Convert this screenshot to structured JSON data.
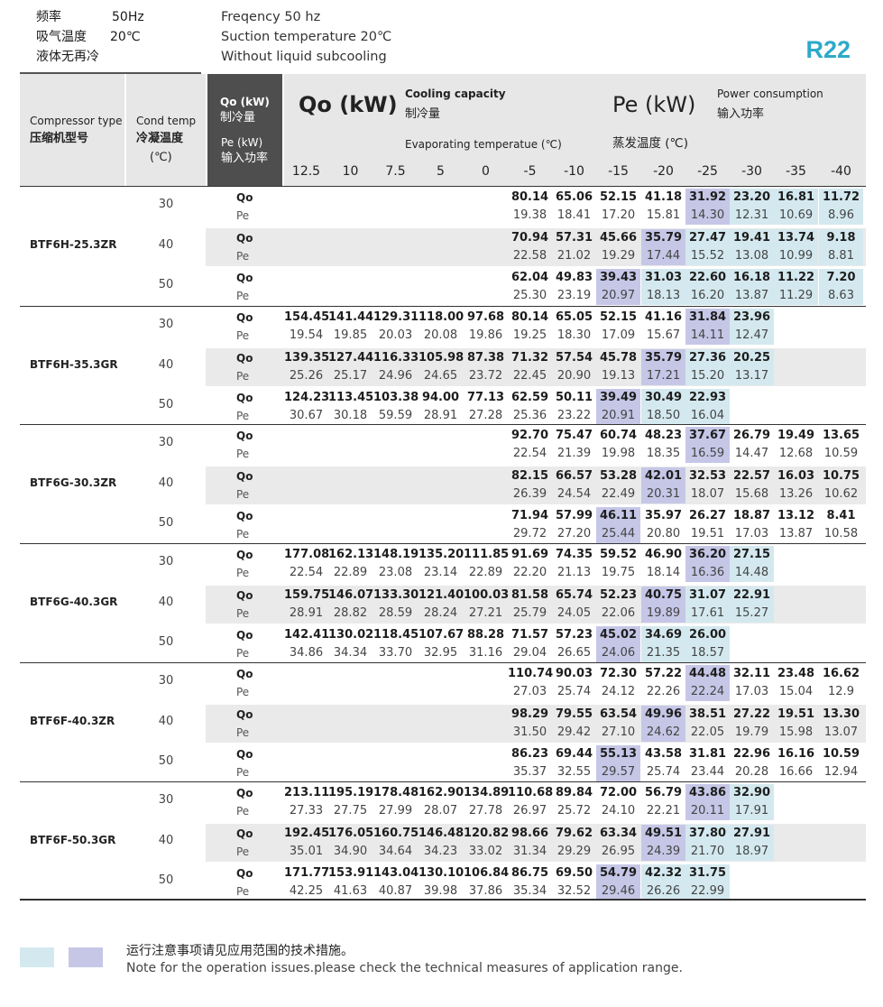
{
  "conditions": {
    "left": [
      {
        "k": "频率",
        "v": "50Hz"
      },
      {
        "k": "吸气温度",
        "v": "20℃"
      },
      {
        "k": "液体无再冷",
        "v": ""
      }
    ],
    "right": [
      "Freqency 50 hz",
      "Suction temperature 20℃",
      "Without liquid subcooling"
    ]
  },
  "refrigerant": "R22",
  "header": {
    "compressor_en": "Compressor type",
    "compressor_cn": "压缩机型号",
    "cond_en": "Cond temp",
    "cond_cn": "冷凝温度",
    "cond_unit": "(℃)",
    "qo_label_1": "Qo (kW)",
    "qo_label_2": "制冷量",
    "pe_label_1": "Pe (kW)",
    "pe_label_2": "输入功率",
    "qo_big": "Qo (kW)",
    "qo_desc_en": "Cooling capacity",
    "qo_desc_cn": "制冷量",
    "pe_big": "Pe (kW)",
    "pe_desc_en": "Power consumption",
    "pe_desc_cn": "输入功率",
    "evap_en": "Evaporating temperatue (℃)",
    "evap_cn": "蒸发温度 (℃)",
    "temps": [
      "12.5",
      "10",
      "7.5",
      "5",
      "0",
      "-5",
      "-10",
      "-15",
      "-20",
      "-25",
      "-30",
      "-35",
      "-40"
    ]
  },
  "labels": {
    "qo": "Qo",
    "pe": "Pe"
  },
  "models": [
    {
      "name": "BTF6H-25.3ZR",
      "rows": [
        {
          "cond": "30",
          "qo": [
            "",
            "",
            "",
            "",
            "",
            "80.14",
            "65.06",
            "52.15",
            "41.18",
            "31.92",
            "23.20",
            "16.81",
            "11.72"
          ],
          "pe": [
            "",
            "",
            "",
            "",
            "",
            "19.38",
            "18.41",
            "17.20",
            "15.81",
            "14.30",
            "12.31",
            "10.69",
            "8.96"
          ]
        },
        {
          "cond": "40",
          "qo": [
            "",
            "",
            "",
            "",
            "",
            "70.94",
            "57.31",
            "45.66",
            "35.79",
            "27.47",
            "19.41",
            "13.74",
            "9.18"
          ],
          "pe": [
            "",
            "",
            "",
            "",
            "",
            "22.58",
            "21.02",
            "19.29",
            "17.44",
            "15.52",
            "13.08",
            "10.99",
            "8.81"
          ]
        },
        {
          "cond": "50",
          "qo": [
            "",
            "",
            "",
            "",
            "",
            "62.04",
            "49.83",
            "39.43",
            "31.03",
            "22.60",
            "16.18",
            "11.22",
            "7.20"
          ],
          "pe": [
            "",
            "",
            "",
            "",
            "",
            "25.30",
            "23.19",
            "20.97",
            "18.13",
            "16.20",
            "13.87",
            "11.29",
            "8.63"
          ]
        }
      ]
    },
    {
      "name": "BTF6H-35.3GR",
      "rows": [
        {
          "cond": "30",
          "qo": [
            "154.45",
            "141.44",
            "129.31",
            "118.00",
            "97.68",
            "80.14",
            "65.05",
            "52.15",
            "41.16",
            "31.84",
            "23.96",
            "",
            ""
          ],
          "pe": [
            "19.54",
            "19.85",
            "20.03",
            "20.08",
            "19.86",
            "19.25",
            "18.30",
            "17.09",
            "15.67",
            "14.11",
            "12.47",
            "",
            ""
          ]
        },
        {
          "cond": "40",
          "qo": [
            "139.35",
            "127.44",
            "116.33",
            "105.98",
            "87.38",
            "71.32",
            "57.54",
            "45.78",
            "35.79",
            "27.36",
            "20.25",
            "",
            ""
          ],
          "pe": [
            "25.26",
            "25.17",
            "24.96",
            "24.65",
            "23.72",
            "22.45",
            "20.90",
            "19.13",
            "17.21",
            "15.20",
            "13.17",
            "",
            ""
          ]
        },
        {
          "cond": "50",
          "qo": [
            "124.23",
            "113.45",
            "103.38",
            "94.00",
            "77.13",
            "62.59",
            "50.11",
            "39.49",
            "30.49",
            "22.93",
            "",
            "",
            ""
          ],
          "pe": [
            "30.67",
            "30.18",
            "59.59",
            "28.91",
            "27.28",
            "25.36",
            "23.22",
            "20.91",
            "18.50",
            "16.04",
            "",
            "",
            ""
          ]
        }
      ]
    },
    {
      "name": "BTF6G-30.3ZR",
      "rows": [
        {
          "cond": "30",
          "qo": [
            "",
            "",
            "",
            "",
            "",
            "92.70",
            "75.47",
            "60.74",
            "48.23",
            "37.67",
            "26.79",
            "19.49",
            "13.65"
          ],
          "pe": [
            "",
            "",
            "",
            "",
            "",
            "22.54",
            "21.39",
            "19.98",
            "18.35",
            "16.59",
            "14.47",
            "12.68",
            "10.59"
          ]
        },
        {
          "cond": "40",
          "qo": [
            "",
            "",
            "",
            "",
            "",
            "82.15",
            "66.57",
            "53.28",
            "42.01",
            "32.53",
            "22.57",
            "16.03",
            "10.75"
          ],
          "pe": [
            "",
            "",
            "",
            "",
            "",
            "26.39",
            "24.54",
            "22.49",
            "20.31",
            "18.07",
            "15.68",
            "13.26",
            "10.62"
          ]
        },
        {
          "cond": "50",
          "qo": [
            "",
            "",
            "",
            "",
            "",
            "71.94",
            "57.99",
            "46.11",
            "35.97",
            "26.27",
            "18.87",
            "13.12",
            "8.41"
          ],
          "pe": [
            "",
            "",
            "",
            "",
            "",
            "29.72",
            "27.20",
            "25.44",
            "20.80",
            "19.51",
            "17.03",
            "13.87",
            "10.58"
          ]
        }
      ]
    },
    {
      "name": "BTF6G-40.3GR",
      "rows": [
        {
          "cond": "30",
          "qo": [
            "177.08",
            "162.13",
            "148.19",
            "135.20",
            "111.85",
            "91.69",
            "74.35",
            "59.52",
            "46.90",
            "36.20",
            "27.15",
            "",
            ""
          ],
          "pe": [
            "22.54",
            "22.89",
            "23.08",
            "23.14",
            "22.89",
            "22.20",
            "21.13",
            "19.75",
            "18.14",
            "16.36",
            "14.48",
            "",
            ""
          ]
        },
        {
          "cond": "40",
          "qo": [
            "159.75",
            "146.07",
            "133.30",
            "121.40",
            "100.03",
            "81.58",
            "65.74",
            "52.23",
            "40.75",
            "31.07",
            "22.91",
            "",
            ""
          ],
          "pe": [
            "28.91",
            "28.82",
            "28.59",
            "28.24",
            "27.21",
            "25.79",
            "24.05",
            "22.06",
            "19.89",
            "17.61",
            "15.27",
            "",
            ""
          ]
        },
        {
          "cond": "50",
          "qo": [
            "142.41",
            "130.02",
            "118.45",
            "107.67",
            "88.28",
            "71.57",
            "57.23",
            "45.02",
            "34.69",
            "26.00",
            "",
            "",
            ""
          ],
          "pe": [
            "34.86",
            "34.34",
            "33.70",
            "32.95",
            "31.16",
            "29.04",
            "26.65",
            "24.06",
            "21.35",
            "18.57",
            "",
            "",
            ""
          ]
        }
      ]
    },
    {
      "name": "BTF6F-40.3ZR",
      "rows": [
        {
          "cond": "30",
          "qo": [
            "",
            "",
            "",
            "",
            "",
            "110.74",
            "90.03",
            "72.30",
            "57.22",
            "44.48",
            "32.11",
            "23.48",
            "16.62"
          ],
          "pe": [
            "",
            "",
            "",
            "",
            "",
            "27.03",
            "25.74",
            "24.12",
            "22.26",
            "22.24",
            "17.03",
            "15.04",
            "12.9"
          ]
        },
        {
          "cond": "40",
          "qo": [
            "",
            "",
            "",
            "",
            "",
            "98.29",
            "79.55",
            "63.54",
            "49.96",
            "38.51",
            "27.22",
            "19.51",
            "13.30"
          ],
          "pe": [
            "",
            "",
            "",
            "",
            "",
            "31.50",
            "29.42",
            "27.10",
            "24.62",
            "22.05",
            "19.79",
            "15.98",
            "13.07"
          ]
        },
        {
          "cond": "50",
          "qo": [
            "",
            "",
            "",
            "",
            "",
            "86.23",
            "69.44",
            "55.13",
            "43.58",
            "31.81",
            "22.96",
            "16.16",
            "10.59"
          ],
          "pe": [
            "",
            "",
            "",
            "",
            "",
            "35.37",
            "32.55",
            "29.57",
            "25.74",
            "23.44",
            "20.28",
            "16.66",
            "12.94"
          ]
        }
      ]
    },
    {
      "name": "BTF6F-50.3GR",
      "rows": [
        {
          "cond": "30",
          "qo": [
            "213.11",
            "195.19",
            "178.48",
            "162.90",
            "134.89",
            "110.68",
            "89.84",
            "72.00",
            "56.79",
            "43.86",
            "32.90",
            "",
            ""
          ],
          "pe": [
            "27.33",
            "27.75",
            "27.99",
            "28.07",
            "27.78",
            "26.97",
            "25.72",
            "24.10",
            "22.21",
            "20.11",
            "17.91",
            "",
            ""
          ]
        },
        {
          "cond": "40",
          "qo": [
            "192.45",
            "176.05",
            "160.75",
            "146.48",
            "120.82",
            "98.66",
            "79.62",
            "63.34",
            "49.51",
            "37.80",
            "27.91",
            "",
            ""
          ],
          "pe": [
            "35.01",
            "34.90",
            "34.64",
            "34.23",
            "33.02",
            "31.34",
            "29.29",
            "26.95",
            "24.39",
            "21.70",
            "18.97",
            "",
            ""
          ]
        },
        {
          "cond": "50",
          "qo": [
            "171.77",
            "153.91",
            "143.04",
            "130.10",
            "106.84",
            "86.75",
            "69.50",
            "54.79",
            "42.32",
            "31.75",
            "",
            "",
            ""
          ],
          "pe": [
            "42.25",
            "41.63",
            "40.87",
            "39.98",
            "37.86",
            "35.34",
            "32.52",
            "29.46",
            "26.26",
            "22.99",
            "",
            "",
            ""
          ]
        }
      ]
    }
  ],
  "highlight": {
    "blue": "#c6c7e7",
    "cyan": "#d4e9ef",
    "blue_cells": [
      [
        [
          9
        ],
        [
          8
        ],
        [
          7
        ]
      ],
      [
        [
          9
        ],
        [
          8
        ],
        [
          7
        ]
      ],
      [
        [
          9
        ],
        [
          8
        ],
        [
          7
        ]
      ],
      [
        [
          9
        ],
        [
          8
        ],
        [
          7
        ]
      ],
      [
        [
          9
        ],
        [
          8
        ],
        [
          7
        ]
      ],
      [
        [
          9
        ],
        [
          8
        ],
        [
          7
        ]
      ]
    ],
    "cyan_cells": [
      [
        [
          10,
          11,
          12
        ],
        [
          9,
          10,
          11,
          12
        ],
        [
          8,
          9,
          10,
          11,
          12
        ]
      ],
      [
        [
          10
        ],
        [
          9,
          10
        ],
        [
          8,
          9
        ]
      ],
      [
        [],
        [],
        []
      ],
      [
        [
          10
        ],
        [
          9,
          10
        ],
        [
          8,
          9
        ]
      ],
      [
        [],
        [],
        []
      ],
      [
        [
          10
        ],
        [
          9,
          10
        ],
        [
          8,
          9
        ]
      ]
    ]
  },
  "note": {
    "cn": "运行注意事项请见应用范围的技术措施。",
    "en": "Note for the operation issues.please check the technical measures of application range."
  }
}
